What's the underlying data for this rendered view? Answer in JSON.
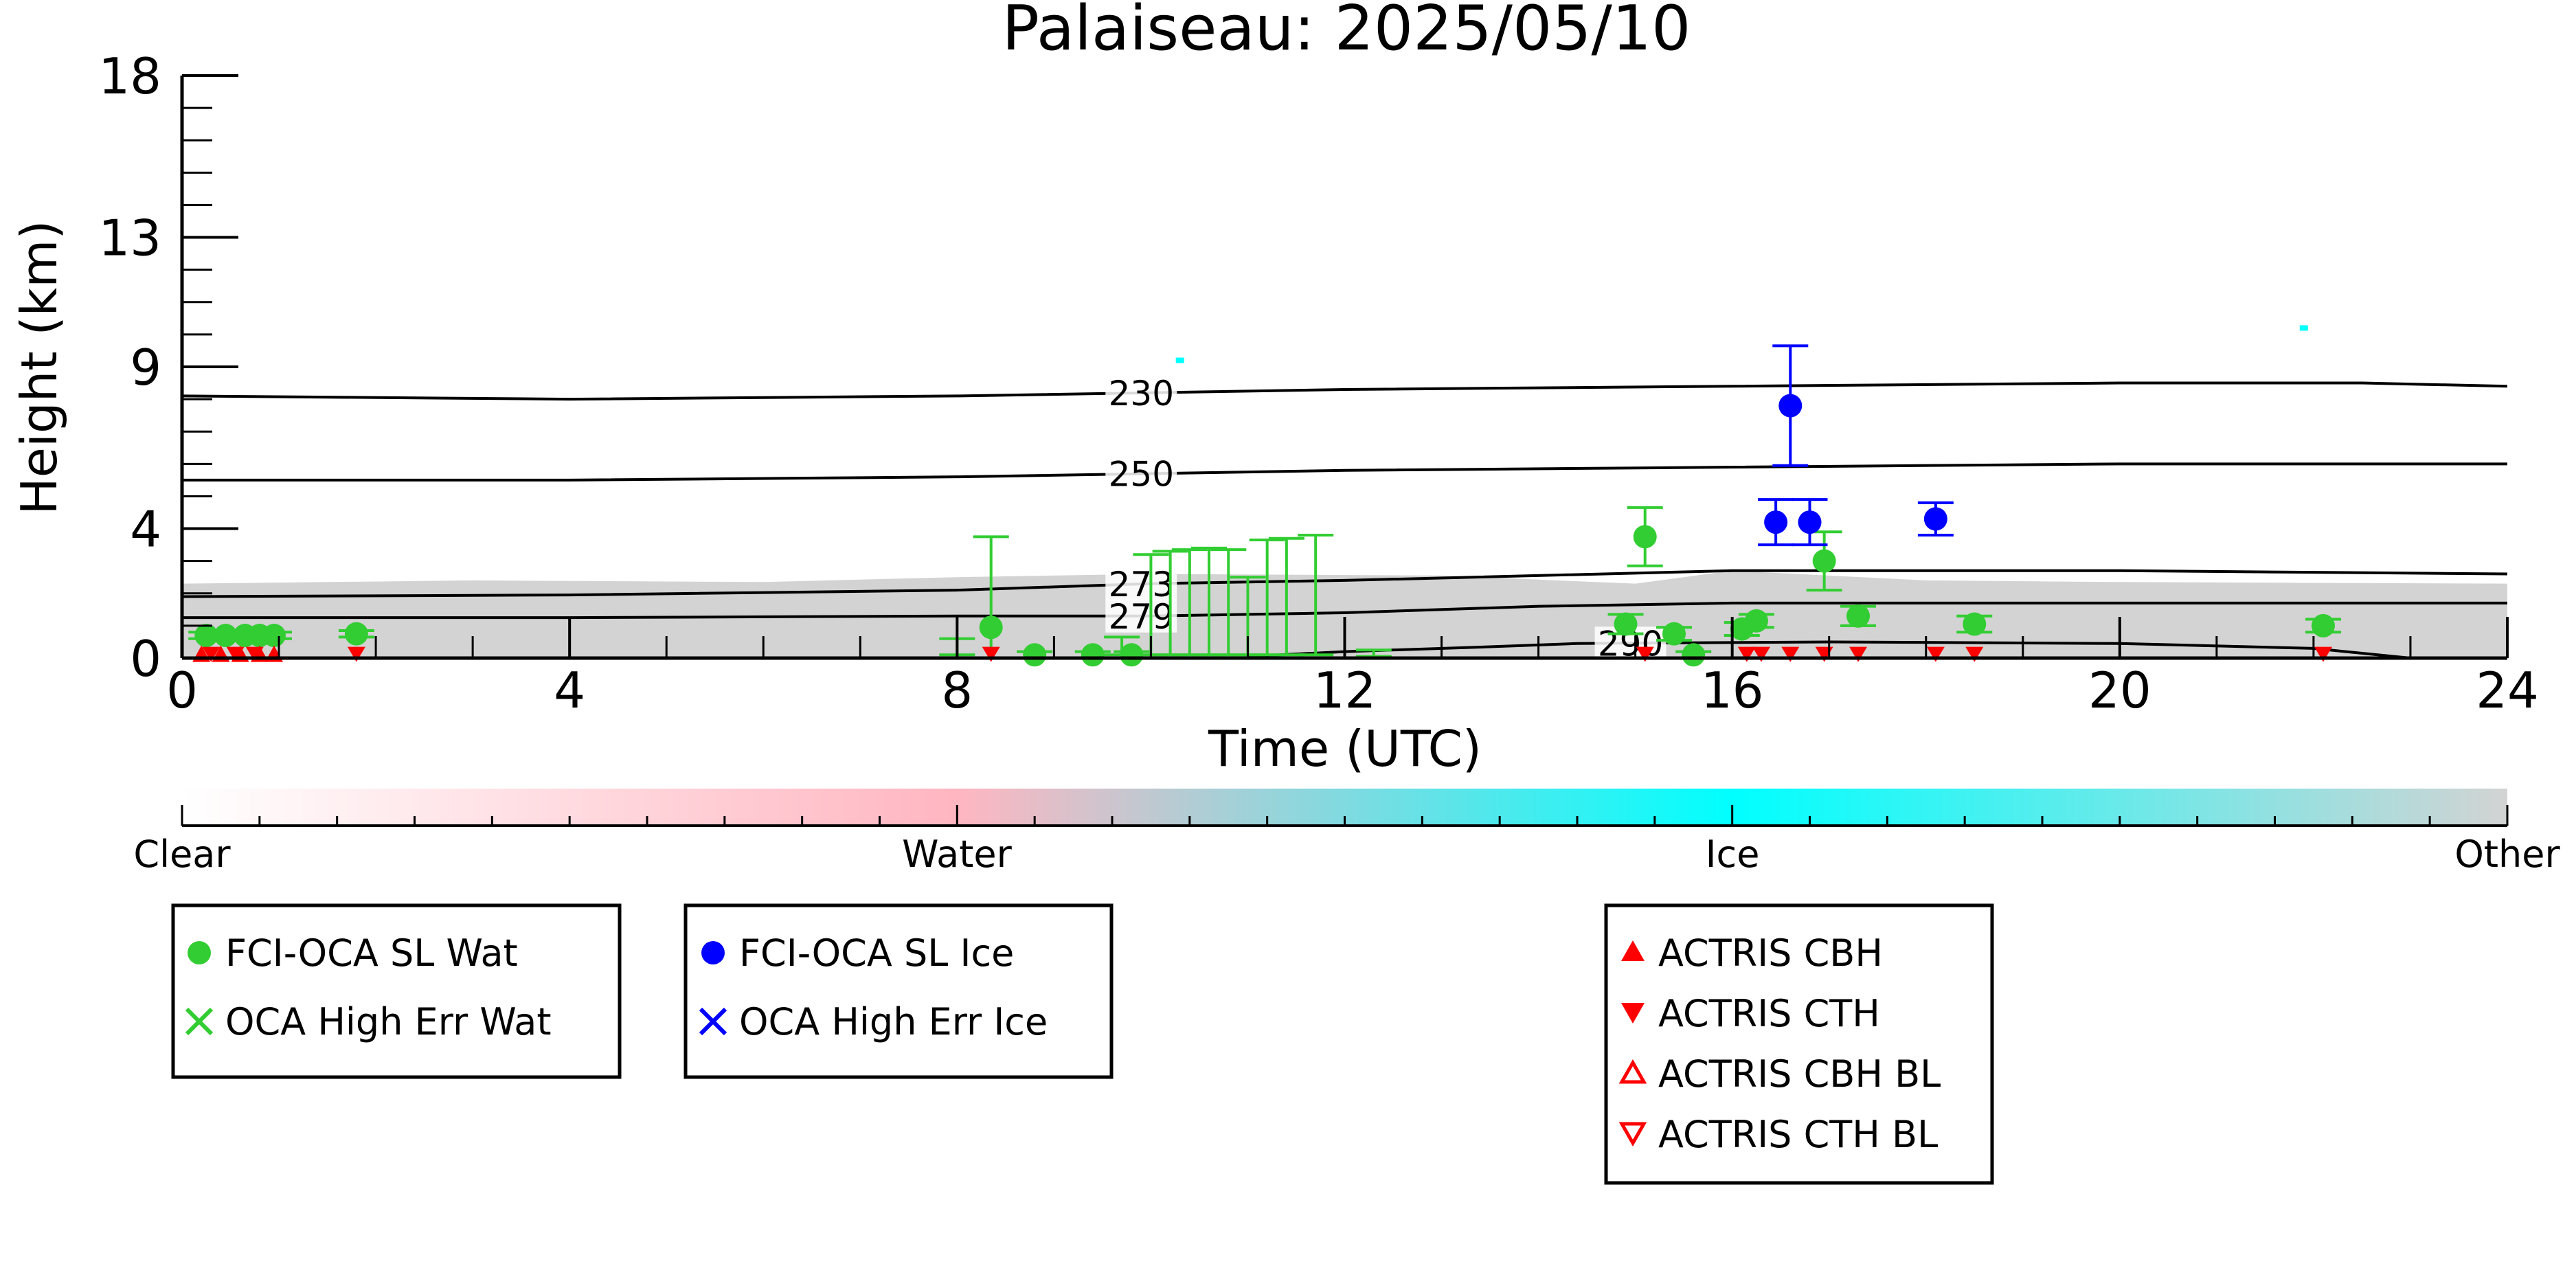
{
  "chart_data": {
    "type": "scatter",
    "title": "Palaiseau: 2025/05/10",
    "xlabel": "Time (UTC)",
    "ylabel": "Height (km)",
    "xlim": [
      0,
      24
    ],
    "ylim": [
      0,
      18
    ],
    "x_ticks": [
      0,
      4,
      8,
      12,
      16,
      20,
      24
    ],
    "y_ticks": [
      0,
      4,
      9,
      13,
      18
    ],
    "background": {
      "layer_top_km": [
        {
          "x": 0,
          "y": 2.3
        },
        {
          "x": 3,
          "y": 2.4
        },
        {
          "x": 6,
          "y": 2.35
        },
        {
          "x": 8,
          "y": 2.5
        },
        {
          "x": 10,
          "y": 2.6
        },
        {
          "x": 13,
          "y": 2.55
        },
        {
          "x": 15,
          "y": 2.3
        },
        {
          "x": 16,
          "y": 2.7
        },
        {
          "x": 18,
          "y": 2.4
        },
        {
          "x": 20,
          "y": 2.35
        },
        {
          "x": 24,
          "y": 2.3
        }
      ],
      "ice_specks": [
        {
          "x": 10.3,
          "y": 9.2
        },
        {
          "x": 21.9,
          "y": 10.2
        }
      ],
      "color": "#d3d3d3"
    },
    "isotherms": [
      {
        "label": "230",
        "label_x": 9.9,
        "points": [
          {
            "x": 0,
            "y": 8.1
          },
          {
            "x": 4,
            "y": 8.0
          },
          {
            "x": 8,
            "y": 8.1
          },
          {
            "x": 12,
            "y": 8.3
          },
          {
            "x": 16,
            "y": 8.4
          },
          {
            "x": 20,
            "y": 8.5
          },
          {
            "x": 22.5,
            "y": 8.5
          },
          {
            "x": 24,
            "y": 8.4
          }
        ]
      },
      {
        "label": "250",
        "label_x": 9.9,
        "points": [
          {
            "x": 0,
            "y": 5.5
          },
          {
            "x": 4,
            "y": 5.5
          },
          {
            "x": 8,
            "y": 5.6
          },
          {
            "x": 12,
            "y": 5.8
          },
          {
            "x": 16,
            "y": 5.9
          },
          {
            "x": 20,
            "y": 6.0
          },
          {
            "x": 24,
            "y": 6.0
          }
        ]
      },
      {
        "label": "273",
        "label_x": 9.9,
        "points": [
          {
            "x": 0,
            "y": 1.9
          },
          {
            "x": 4,
            "y": 1.95
          },
          {
            "x": 8,
            "y": 2.1
          },
          {
            "x": 10,
            "y": 2.3
          },
          {
            "x": 12,
            "y": 2.4
          },
          {
            "x": 16,
            "y": 2.7
          },
          {
            "x": 20,
            "y": 2.7
          },
          {
            "x": 22,
            "y": 2.65
          },
          {
            "x": 24,
            "y": 2.6
          }
        ]
      },
      {
        "label": "279",
        "label_x": 9.9,
        "points": [
          {
            "x": 0,
            "y": 1.25
          },
          {
            "x": 4,
            "y": 1.25
          },
          {
            "x": 8,
            "y": 1.3
          },
          {
            "x": 10,
            "y": 1.3
          },
          {
            "x": 12,
            "y": 1.4
          },
          {
            "x": 14,
            "y": 1.6
          },
          {
            "x": 16,
            "y": 1.7
          },
          {
            "x": 20,
            "y": 1.7
          },
          {
            "x": 24,
            "y": 1.7
          }
        ]
      },
      {
        "label": "290",
        "label_x": 14.95,
        "points": [
          {
            "x": 11,
            "y": 0.05
          },
          {
            "x": 12,
            "y": 0.2
          },
          {
            "x": 13.5,
            "y": 0.35
          },
          {
            "x": 14.4,
            "y": 0.45
          },
          {
            "x": 17,
            "y": 0.5
          },
          {
            "x": 20,
            "y": 0.45
          },
          {
            "x": 22,
            "y": 0.3
          },
          {
            "x": 23,
            "y": 0.0
          }
        ]
      }
    ],
    "series": [
      {
        "name": "FCI-OCA SL Wat",
        "color": "#32cd32",
        "points": [
          {
            "x": 0.25,
            "y": 0.7,
            "err": 0.1
          },
          {
            "x": 0.45,
            "y": 0.7,
            "err": 0.1
          },
          {
            "x": 0.65,
            "y": 0.7,
            "err": 0.1
          },
          {
            "x": 0.8,
            "y": 0.7,
            "err": 0.1
          },
          {
            "x": 0.95,
            "y": 0.7,
            "err": 0.1
          },
          {
            "x": 1.8,
            "y": 0.75,
            "err": 0.1
          },
          {
            "x": 8.35,
            "y": 0.95,
            "err_up": 2.8,
            "err_down": 1.1
          },
          {
            "x": 8.8,
            "y": 0.1,
            "err": 0.1
          },
          {
            "x": 9.4,
            "y": 0.1,
            "err": 0.1
          },
          {
            "x": 9.8,
            "y": 0.1,
            "err": 0.1
          },
          {
            "x": 15.1,
            "y": 3.75,
            "err": 0.9
          },
          {
            "x": 14.9,
            "y": 1.05,
            "err": 0.3
          },
          {
            "x": 15.4,
            "y": 0.75,
            "err": 0.2
          },
          {
            "x": 15.6,
            "y": 0.1,
            "err": 0.1
          },
          {
            "x": 16.1,
            "y": 0.9,
            "err": 0.2
          },
          {
            "x": 16.25,
            "y": 1.15,
            "err": 0.2
          },
          {
            "x": 16.95,
            "y": 3.0,
            "err": 0.9
          },
          {
            "x": 17.3,
            "y": 1.3,
            "err": 0.3
          },
          {
            "x": 18.5,
            "y": 1.05,
            "err": 0.25
          },
          {
            "x": 22.1,
            "y": 1.0,
            "err": 0.2
          }
        ]
      },
      {
        "name": "OCA High Err Wat",
        "color": "#32cd32",
        "points": []
      },
      {
        "name": "FCI-OCA SL Ice",
        "color": "#0000ff",
        "points": [
          {
            "x": 16.6,
            "y": 7.8,
            "err": 1.85
          },
          {
            "x": 16.45,
            "y": 4.2,
            "err": 0.7
          },
          {
            "x": 16.8,
            "y": 4.2,
            "err": 0.7
          },
          {
            "x": 18.1,
            "y": 4.3,
            "err": 0.5
          }
        ]
      },
      {
        "name": "OCA High Err Ice",
        "color": "#0000ff",
        "points": []
      },
      {
        "name": "ACTRIS CBH",
        "color": "#ff0000",
        "points": [
          {
            "x": 0.2,
            "y": 0.05
          },
          {
            "x": 0.4,
            "y": 0.05
          },
          {
            "x": 0.6,
            "y": 0.05
          },
          {
            "x": 0.8,
            "y": 0.05
          },
          {
            "x": 0.95,
            "y": 0.05
          }
        ]
      },
      {
        "name": "ACTRIS CTH",
        "color": "#ff0000",
        "points": [
          {
            "x": 0.3,
            "y": 0.05
          },
          {
            "x": 0.55,
            "y": 0.05
          },
          {
            "x": 0.75,
            "y": 0.05
          },
          {
            "x": 1.8,
            "y": 0.05
          },
          {
            "x": 8.35,
            "y": 0.05
          },
          {
            "x": 15.1,
            "y": 0.05
          },
          {
            "x": 16.15,
            "y": 0.05
          },
          {
            "x": 16.3,
            "y": 0.05
          },
          {
            "x": 16.6,
            "y": 0.05
          },
          {
            "x": 16.95,
            "y": 0.05
          },
          {
            "x": 17.3,
            "y": 0.05
          },
          {
            "x": 18.1,
            "y": 0.05
          },
          {
            "x": 18.5,
            "y": 0.05
          },
          {
            "x": 22.1,
            "y": 0.05
          }
        ]
      },
      {
        "name": "ACTRIS CBH BL",
        "color": "#ff0000",
        "points": []
      },
      {
        "name": "ACTRIS CTH BL",
        "color": "#ff0000",
        "points": []
      }
    ],
    "high_error_bars": {
      "color": "#32cd32",
      "bars": [
        {
          "x": 10.0,
          "low": 0.1,
          "high": 3.2
        },
        {
          "x": 10.2,
          "low": 0.1,
          "high": 3.3
        },
        {
          "x": 10.4,
          "low": 0.1,
          "high": 3.35
        },
        {
          "x": 10.6,
          "low": 0.1,
          "high": 3.4
        },
        {
          "x": 10.8,
          "low": 0.1,
          "high": 3.35
        },
        {
          "x": 11.0,
          "low": 0.1,
          "high": 2.5
        },
        {
          "x": 11.2,
          "low": 0.1,
          "high": 3.65
        },
        {
          "x": 11.4,
          "low": 0.1,
          "high": 3.7
        },
        {
          "x": 11.7,
          "low": 0.1,
          "high": 3.8
        },
        {
          "x": 8.0,
          "low": 0.1,
          "high": 0.6
        },
        {
          "x": 9.7,
          "low": 0.1,
          "high": 0.65
        },
        {
          "x": 12.3,
          "low": 0.05,
          "high": 0.25
        }
      ]
    },
    "colorbar": {
      "labels": [
        "Clear",
        "Water",
        "Ice",
        "Other"
      ],
      "colors": [
        "#ffffff",
        "#ffb6c1",
        "#00ffff",
        "#d3d3d3"
      ]
    }
  },
  "legend": {
    "water": [
      "FCI-OCA SL Wat",
      "OCA High Err Wat"
    ],
    "ice": [
      "FCI-OCA SL Ice",
      "OCA High Err Ice"
    ],
    "actris": [
      "ACTRIS CBH",
      "ACTRIS CTH",
      "ACTRIS CBH BL",
      "ACTRIS CTH BL"
    ]
  }
}
